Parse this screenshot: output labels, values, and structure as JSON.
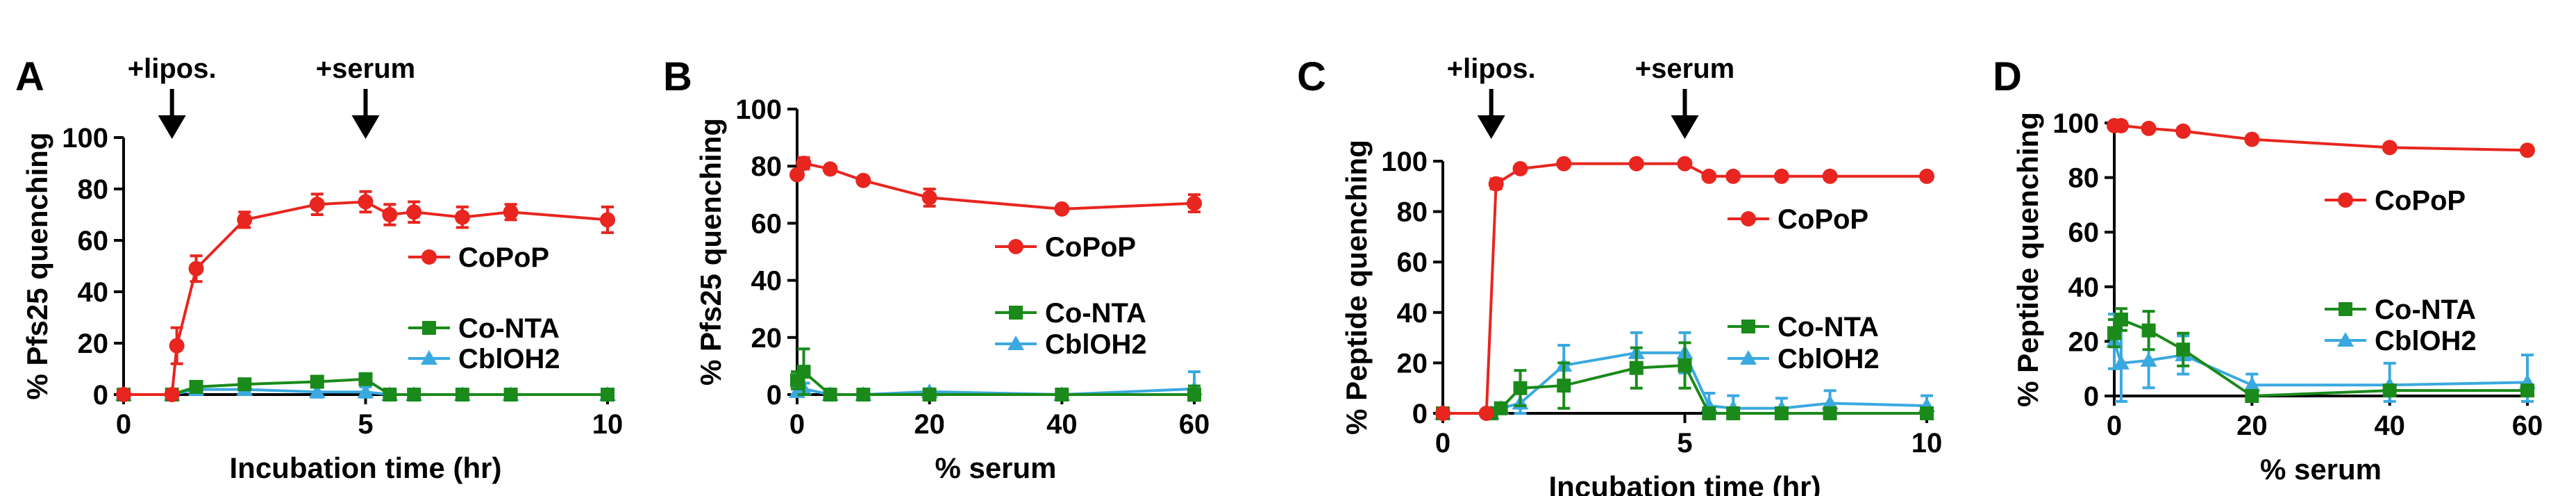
{
  "colors": {
    "CoPoP": "#e8251f",
    "CoNTA": "#1a8a1a",
    "CblOH2": "#3aa9e0",
    "axis": "#000000"
  },
  "chart_data": [
    {
      "letter": "A",
      "type": "line",
      "xlabel": "Incubation time (hr)",
      "ylabel": "% Pfs25 quenching",
      "xlim": [
        0,
        10
      ],
      "ylim": [
        0,
        100
      ],
      "xticks": [
        0,
        5,
        10
      ],
      "yticks": [
        0,
        20,
        40,
        60,
        80,
        100
      ],
      "arrows": [
        {
          "x": 1,
          "label": "+lipos."
        },
        {
          "x": 5,
          "label": "+serum"
        }
      ],
      "legend": [
        "CoPoP",
        "Co-NTA",
        "CblOH2"
      ],
      "series": [
        {
          "name": "CoPoP",
          "key": "CoPoP",
          "marker": "circle",
          "x": [
            0,
            1,
            1.1,
            1.5,
            2.5,
            4,
            5,
            5.5,
            6,
            7,
            8,
            10
          ],
          "y": [
            0,
            0,
            19,
            49,
            68,
            74,
            75,
            70,
            71,
            69,
            71,
            68
          ],
          "err": [
            0,
            0,
            7,
            5,
            3,
            4,
            4,
            4,
            4,
            4,
            3,
            5
          ]
        },
        {
          "name": "Co-NTA",
          "key": "CoNTA",
          "marker": "square",
          "x": [
            0,
            1,
            1.5,
            2.5,
            4,
            5,
            5.5,
            6,
            7,
            8,
            10
          ],
          "y": [
            0,
            0,
            3,
            4,
            5,
            6,
            0,
            0,
            0,
            0,
            0
          ],
          "err": [
            0,
            0,
            2,
            2,
            2,
            2,
            0,
            0,
            0,
            0,
            0
          ]
        },
        {
          "name": "CblOH2",
          "key": "CblOH2",
          "marker": "triangle",
          "x": [
            0,
            1,
            1.5,
            2.5,
            4,
            5,
            5.5,
            6,
            7,
            8,
            10
          ],
          "y": [
            0,
            0,
            2,
            2,
            1,
            1,
            0,
            0,
            0,
            0,
            0
          ],
          "err": [
            0,
            0,
            2,
            2,
            2,
            2,
            0,
            0,
            0,
            0,
            0
          ]
        }
      ]
    },
    {
      "letter": "B",
      "type": "line",
      "xlabel": "% serum",
      "ylabel": "% Pfs25 quenching",
      "xlim": [
        0,
        60
      ],
      "ylim": [
        0,
        100
      ],
      "xticks": [
        0,
        20,
        40,
        60
      ],
      "yticks": [
        0,
        20,
        40,
        60,
        80,
        100
      ],
      "arrows": [],
      "legend": [
        "CoPoP",
        "Co-NTA",
        "CblOH2"
      ],
      "series": [
        {
          "name": "CoPoP",
          "key": "CoPoP",
          "marker": "circle",
          "x": [
            0,
            1,
            5,
            10,
            20,
            40,
            60
          ],
          "y": [
            77,
            81,
            79,
            75,
            69,
            65,
            67
          ],
          "err": [
            0,
            2,
            1,
            1,
            3,
            1,
            3
          ]
        },
        {
          "name": "Co-NTA",
          "key": "CoNTA",
          "marker": "square",
          "x": [
            0,
            1,
            5,
            10,
            20,
            40,
            60
          ],
          "y": [
            5,
            8,
            0,
            0,
            0,
            0,
            0
          ],
          "err": [
            3,
            8,
            1,
            1,
            1,
            1,
            3
          ]
        },
        {
          "name": "CblOH2",
          "key": "CblOH2",
          "marker": "triangle",
          "x": [
            0,
            1,
            5,
            10,
            20,
            40,
            60
          ],
          "y": [
            1,
            2,
            0,
            0,
            1,
            0,
            2
          ],
          "err": [
            1,
            2,
            1,
            1,
            1,
            1,
            6
          ]
        }
      ]
    },
    {
      "letter": "C",
      "type": "line",
      "xlabel": "Incubation time (hr)",
      "ylabel": "% Peptide quenching",
      "xlim": [
        0,
        10
      ],
      "ylim": [
        0,
        100
      ],
      "xticks": [
        0,
        5,
        10
      ],
      "yticks": [
        0,
        20,
        40,
        60,
        80,
        100
      ],
      "arrows": [
        {
          "x": 1,
          "label": "+lipos."
        },
        {
          "x": 5,
          "label": "+serum"
        }
      ],
      "legend": [
        "CoPoP",
        "Co-NTA",
        "CblOH2"
      ],
      "series": [
        {
          "name": "CoPoP",
          "key": "CoPoP",
          "marker": "circle",
          "x": [
            0,
            0.9,
            1.1,
            1.6,
            2.5,
            4,
            5,
            5.5,
            6,
            7,
            8,
            10
          ],
          "y": [
            0,
            0,
            91,
            97,
            99,
            99,
            99,
            94,
            94,
            94,
            94,
            94
          ],
          "err": [
            0,
            0,
            2,
            1,
            1,
            1,
            1,
            1,
            1,
            1,
            1,
            1
          ]
        },
        {
          "name": "Co-NTA",
          "key": "CoNTA",
          "marker": "square",
          "x": [
            0,
            1,
            1.2,
            1.6,
            2.5,
            4,
            5,
            5.5,
            6,
            7,
            8,
            10
          ],
          "y": [
            0,
            0,
            2,
            10,
            11,
            18,
            19,
            0,
            0,
            0,
            0,
            0
          ],
          "err": [
            0,
            0,
            2,
            7,
            9,
            8,
            9,
            1,
            1,
            1,
            1,
            1
          ]
        },
        {
          "name": "CblOH2",
          "key": "CblOH2",
          "marker": "triangle",
          "x": [
            0,
            1,
            1.2,
            1.6,
            2.5,
            4,
            5,
            5.5,
            6,
            7,
            8,
            10
          ],
          "y": [
            0,
            0,
            2,
            4,
            19,
            24,
            24,
            3,
            2,
            2,
            4,
            3
          ],
          "err": [
            0,
            0,
            2,
            4,
            8,
            8,
            8,
            5,
            5,
            4,
            5,
            4
          ]
        }
      ]
    },
    {
      "letter": "D",
      "type": "line",
      "xlabel": "% serum",
      "ylabel": "% Peptide quenching",
      "xlim": [
        0,
        60
      ],
      "ylim": [
        0,
        100
      ],
      "xticks": [
        0,
        20,
        40,
        60
      ],
      "yticks": [
        0,
        20,
        40,
        60,
        80,
        100
      ],
      "arrows": [],
      "legend": [
        "CoPoP",
        "Co-NTA",
        "CblOH2"
      ],
      "series": [
        {
          "name": "CoPoP",
          "key": "CoPoP",
          "marker": "circle",
          "x": [
            0,
            1,
            5,
            10,
            20,
            40,
            60
          ],
          "y": [
            99,
            99,
            98,
            97,
            94,
            91,
            90
          ],
          "err": [
            1,
            1,
            1,
            1,
            1,
            1,
            1
          ]
        },
        {
          "name": "Co-NTA",
          "key": "CoNTA",
          "marker": "square",
          "x": [
            0,
            1,
            5,
            10,
            20,
            40,
            60
          ],
          "y": [
            23,
            28,
            24,
            17,
            0,
            2,
            2
          ],
          "err": [
            5,
            4,
            7,
            6,
            1,
            2,
            2
          ]
        },
        {
          "name": "CblOH2",
          "key": "CblOH2",
          "marker": "triangle",
          "x": [
            0,
            1,
            5,
            10,
            20,
            40,
            60
          ],
          "y": [
            20,
            12,
            13,
            15,
            4,
            4,
            5
          ],
          "err": [
            10,
            14,
            10,
            7,
            4,
            8,
            10
          ]
        }
      ]
    }
  ]
}
